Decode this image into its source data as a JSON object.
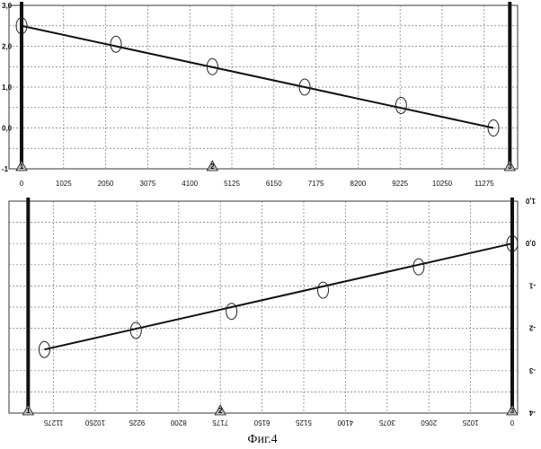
{
  "caption": "Фиг.4",
  "chart_data": [
    {
      "type": "line",
      "xlim": [
        0,
        12300
      ],
      "ylim": [
        -1.0,
        3.0
      ],
      "x_ticks": [
        0,
        1025,
        2050,
        3075,
        4100,
        5125,
        6150,
        7175,
        8200,
        9225,
        10250,
        11275
      ],
      "x_tick_labels": [
        "0",
        "1025",
        "2050",
        "3075",
        "4100",
        "5125",
        "6150",
        "7175",
        "8200",
        "9225",
        "10250",
        "11275"
      ],
      "y_ticks": [
        3.0,
        2.0,
        1.0,
        0.0,
        -1.0
      ],
      "y_tick_labels": [
        "3,0",
        "2,0",
        "1,0",
        "0,0",
        "-1"
      ],
      "grid": true,
      "series": [
        {
          "x": [
            0,
            11500
          ],
          "y": [
            2.5,
            0.0
          ],
          "points_x": [
            0,
            2300,
            4650,
            6900,
            9250,
            11500
          ],
          "points_y": [
            2.5,
            2.05,
            1.5,
            1.0,
            0.55,
            0.0
          ]
        }
      ],
      "markers": [
        {
          "x": 0,
          "label": "1"
        },
        {
          "x": 4650,
          "label": "2"
        },
        {
          "x": 11900,
          "label": "3"
        }
      ]
    },
    {
      "type": "line",
      "x_reversed": true,
      "xlim": [
        12300,
        0
      ],
      "ylim": [
        -4.0,
        1.0
      ],
      "x_ticks": [
        11275,
        10250,
        9225,
        8200,
        7175,
        6150,
        5125,
        4100,
        3075,
        2050,
        1025,
        0
      ],
      "x_tick_labels": [
        "11275",
        "10250",
        "9225",
        "8200",
        "7175",
        "6150",
        "5125",
        "4100",
        "3075",
        "2050",
        "1025",
        "0"
      ],
      "y_ticks": [
        1.0,
        0.0,
        -1.0,
        -2.0,
        -3.0,
        -4.0
      ],
      "y_tick_labels": [
        "1,0",
        "0,0",
        "-1",
        "-2",
        "-3",
        "-4"
      ],
      "grid": true,
      "series": [
        {
          "x": [
            11500,
            0
          ],
          "y": [
            -2.5,
            0.0
          ],
          "points_x": [
            11500,
            9250,
            6900,
            4650,
            2300,
            0
          ],
          "points_y": [
            -2.5,
            -2.05,
            -1.6,
            -1.1,
            -0.55,
            0.0
          ]
        }
      ],
      "markers": [
        {
          "x": 11900,
          "label": "1"
        },
        {
          "x": 7175,
          "label": "2"
        },
        {
          "x": 0,
          "label": "3"
        }
      ]
    }
  ]
}
